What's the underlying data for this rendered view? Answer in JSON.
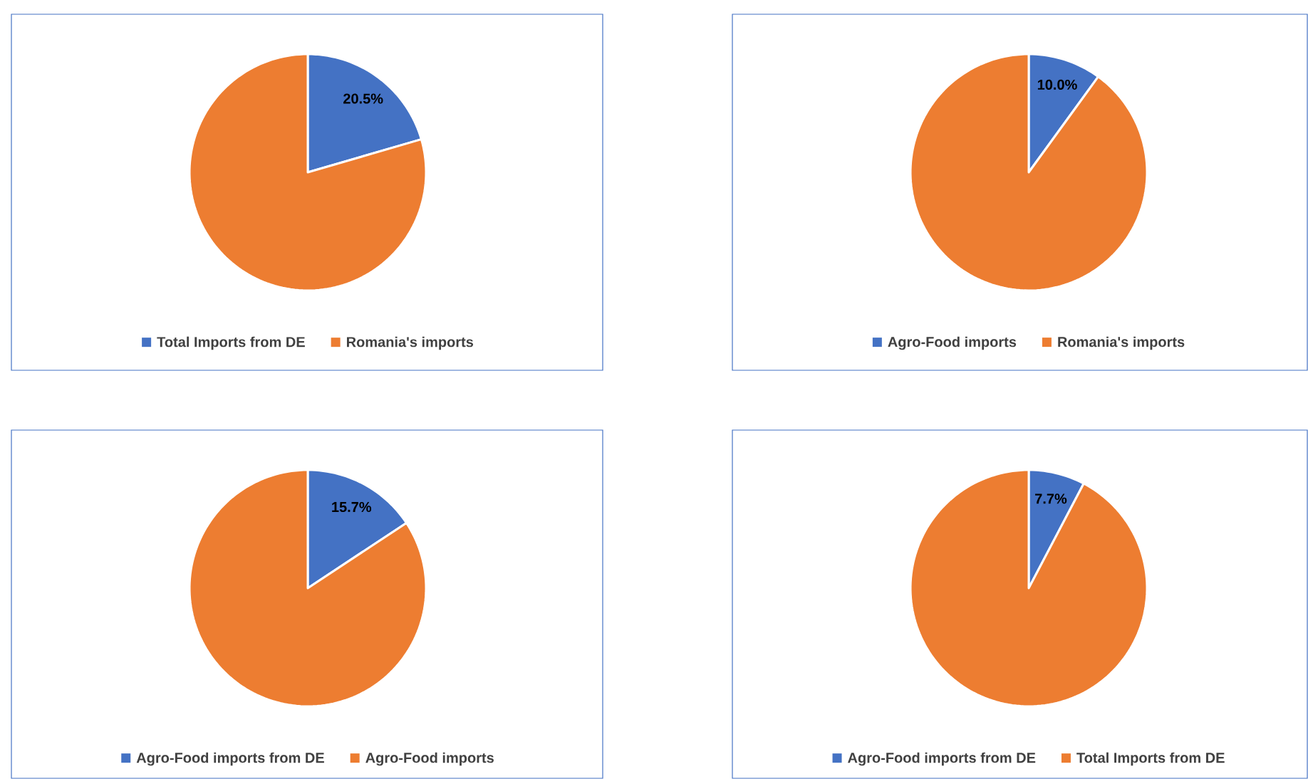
{
  "chart_data": [
    {
      "type": "pie",
      "categories": [
        "Total Imports from DE",
        "Romania's imports"
      ],
      "values": [
        20.5,
        79.5
      ],
      "colors": [
        "#4472c4",
        "#ed7d31"
      ],
      "value_labels": [
        "20.5%",
        null
      ],
      "legend": "bottom"
    },
    {
      "type": "pie",
      "categories": [
        "Agro-Food imports",
        "Romania's imports"
      ],
      "values": [
        10.0,
        90.0
      ],
      "colors": [
        "#4472c4",
        "#ed7d31"
      ],
      "value_labels": [
        "10.0%",
        null
      ],
      "legend": "bottom"
    },
    {
      "type": "pie",
      "categories": [
        "Agro-Food imports from DE",
        "Agro-Food imports"
      ],
      "values": [
        15.7,
        84.3
      ],
      "colors": [
        "#4472c4",
        "#ed7d31"
      ],
      "value_labels": [
        "15.7%",
        null
      ],
      "legend": "bottom"
    },
    {
      "type": "pie",
      "categories": [
        "Agro-Food imports from DE",
        "Total Imports from DE"
      ],
      "values": [
        7.7,
        92.3
      ],
      "colors": [
        "#4472c4",
        "#ed7d31"
      ],
      "value_labels": [
        "7.7%",
        null
      ],
      "legend": "bottom"
    }
  ]
}
